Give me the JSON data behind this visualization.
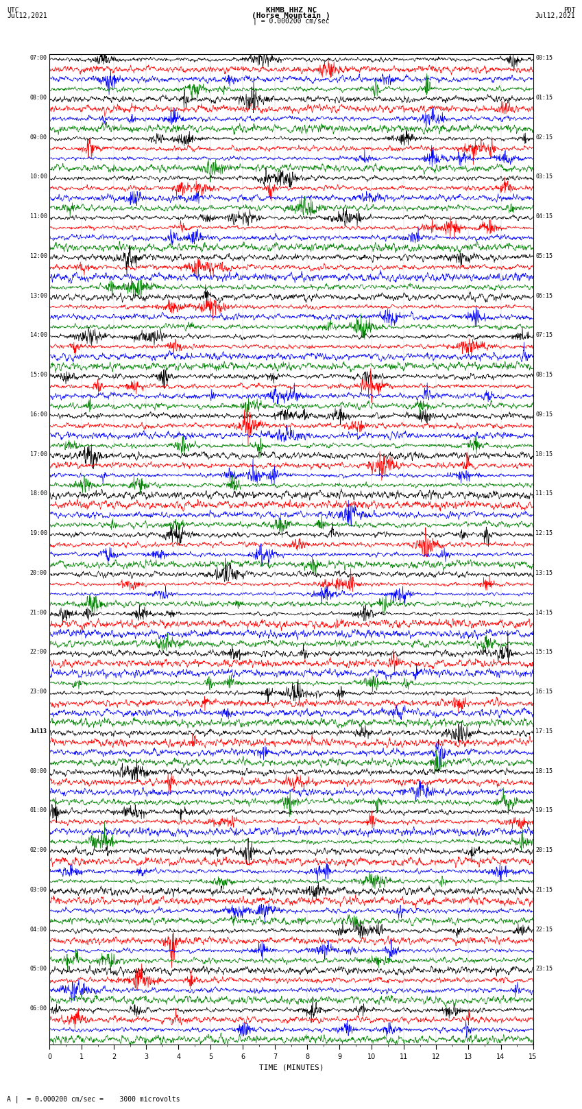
{
  "title_line1": "KHMB HHZ NC",
  "title_line2": "(Horse Mountain )",
  "title_line3": "| = 0.000200 cm/sec",
  "left_header_line1": "UTC",
  "left_header_line2": "Jul12,2021",
  "right_header_line1": "PDT",
  "right_header_line2": "Jul12,2021",
  "xlabel": "TIME (MINUTES)",
  "footnote": "A |  = 0.000200 cm/sec =    3000 microvolts",
  "trace_colors": [
    "black",
    "red",
    "blue",
    "green"
  ],
  "left_label_data": [
    "07:00",
    "08:00",
    "09:00",
    "10:00",
    "11:00",
    "12:00",
    "13:00",
    "14:00",
    "15:00",
    "16:00",
    "17:00",
    "18:00",
    "19:00",
    "20:00",
    "21:00",
    "22:00",
    "23:00",
    "Jul13",
    "00:00",
    "01:00",
    "02:00",
    "03:00",
    "04:00",
    "05:00",
    "06:00"
  ],
  "right_label_data": [
    "00:15",
    "01:15",
    "02:15",
    "03:15",
    "04:15",
    "05:15",
    "06:15",
    "07:15",
    "08:15",
    "09:15",
    "10:15",
    "11:15",
    "12:15",
    "13:15",
    "14:15",
    "15:15",
    "16:15",
    "17:15",
    "18:15",
    "19:15",
    "20:15",
    "21:15",
    "22:15",
    "23:15"
  ],
  "n_hour_blocks": 25,
  "n_colors": 4,
  "n_cols": 1500,
  "trace_amplitude": 0.42,
  "background_color": "white",
  "linewidth": 0.5,
  "title_fontsize": 8,
  "label_fontsize": 6,
  "tick_fontsize": 7,
  "footnote_fontsize": 7
}
